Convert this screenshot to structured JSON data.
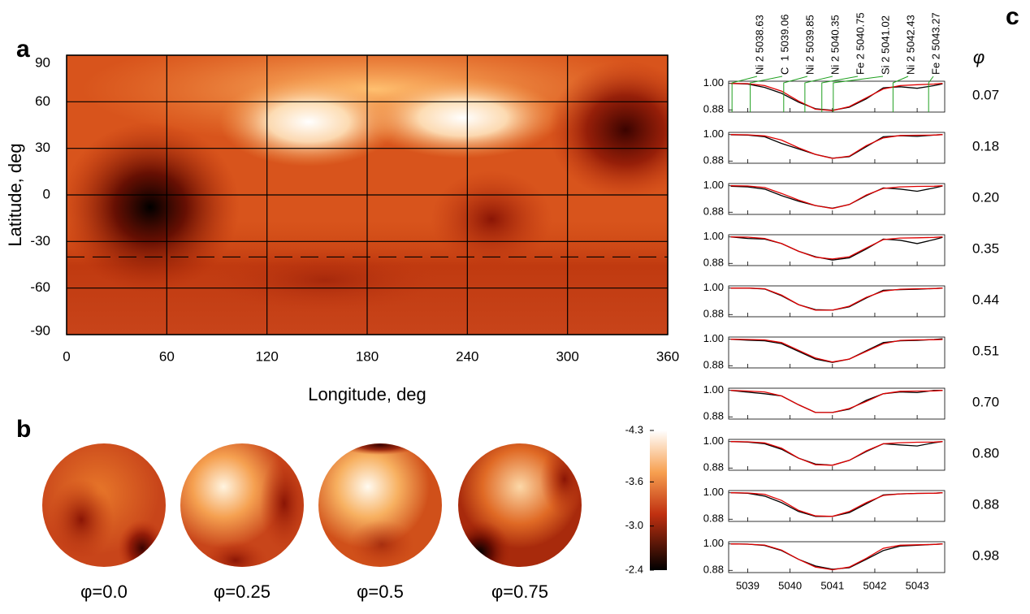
{
  "chart_data": [
    {
      "type": "heatmap",
      "panel_label": "a",
      "xlabel": "Longitude, deg",
      "ylabel": "Latitude, deg",
      "xlim": [
        0,
        360
      ],
      "ylim": [
        -90,
        90
      ],
      "xticks": [
        0,
        60,
        120,
        180,
        240,
        300,
        360
      ],
      "yticks": [
        90,
        60,
        30,
        0,
        -30,
        -60,
        -90
      ],
      "grid": true,
      "grid_color": "#000000",
      "reference_line": -40
    },
    {
      "type": "globes",
      "panel_label": "b",
      "phase_labels": [
        "φ=0.0",
        "φ=0.25",
        "φ=0.5",
        "φ=0.75"
      ],
      "clim": [
        -4.3,
        -2.4
      ],
      "cticks": [
        -4.3,
        -3.6,
        {
          "value": -3,
          "label": "-3.0"
        },
        -2.4
      ]
    },
    {
      "type": "line-profiles",
      "panel_label": "c",
      "phase_symbol": "φ",
      "xlim": [
        5038.55,
        5043.65
      ],
      "ylim": [
        0.87,
        1.01
      ],
      "xticks": [
        5039,
        5040,
        5041,
        5042,
        5043
      ],
      "yticks": [
        {
          "value": 1,
          "label": "1.00"
        },
        {
          "value": 0.88,
          "label": "0.88"
        }
      ],
      "lines": [
        {
          "label": "Ni 2 5038.63",
          "x": 5038.63
        },
        {
          "label": "C  1 5039.06",
          "x": 5039.06
        },
        {
          "label": "Ni 2 5039.85",
          "x": 5039.85
        },
        {
          "label": "Ni 2 5040.35",
          "x": 5040.35
        },
        {
          "label": "Fe 2 5040.75",
          "x": 5040.75
        },
        {
          "label": "Si 2 5041.02",
          "x": 5041.02
        },
        {
          "label": "Ni 2 5042.43",
          "x": 5042.43
        },
        {
          "label": "Fe 2 5043.27",
          "x": 5043.27
        }
      ],
      "x": [
        5038.6,
        5039.0,
        5039.4,
        5039.8,
        5040.2,
        5040.6,
        5041.0,
        5041.4,
        5041.8,
        5042.2,
        5042.6,
        5043.0,
        5043.4,
        5043.6
      ],
      "panels": [
        {
          "phase": "0.07",
          "series": [
            {
              "color": "#000000",
              "values": [
                1.0,
                0.997,
                0.982,
                0.955,
                0.915,
                0.885,
                0.878,
                0.892,
                0.93,
                0.98,
                0.985,
                0.978,
                0.99,
                0.998
              ]
            },
            {
              "color": "#e00000",
              "values": [
                1.0,
                0.999,
                0.99,
                0.965,
                0.92,
                0.883,
                0.877,
                0.895,
                0.935,
                0.975,
                0.99,
                0.994,
                0.997,
                1.0
              ]
            }
          ]
        },
        {
          "phase": "0.18",
          "series": [
            {
              "color": "#000000",
              "values": [
                0.999,
                0.998,
                0.99,
                0.96,
                0.935,
                0.91,
                0.893,
                0.9,
                0.945,
                0.99,
                0.995,
                0.992,
                0.998,
                1.0
              ]
            },
            {
              "color": "#e00000",
              "values": [
                1.0,
                0.999,
                0.994,
                0.975,
                0.94,
                0.91,
                0.892,
                0.902,
                0.95,
                0.985,
                0.996,
                0.997,
                0.998,
                1.0
              ]
            }
          ]
        },
        {
          "phase": "0.20",
          "series": [
            {
              "color": "#000000",
              "values": [
                0.998,
                0.995,
                0.985,
                0.955,
                0.93,
                0.91,
                0.898,
                0.915,
                0.955,
                0.99,
                0.985,
                0.975,
                0.99,
                0.999
              ]
            },
            {
              "color": "#e00000",
              "values": [
                1.0,
                0.999,
                0.992,
                0.965,
                0.935,
                0.91,
                0.897,
                0.915,
                0.958,
                0.988,
                0.995,
                0.997,
                0.998,
                1.0
              ]
            }
          ]
        },
        {
          "phase": "0.35",
          "series": [
            {
              "color": "#000000",
              "values": [
                1.0,
                0.993,
                0.99,
                0.97,
                0.935,
                0.91,
                0.895,
                0.905,
                0.945,
                0.99,
                0.985,
                0.97,
                0.988,
                0.998
              ]
            },
            {
              "color": "#e00000",
              "values": [
                1.0,
                0.999,
                0.993,
                0.97,
                0.935,
                0.908,
                0.9,
                0.91,
                0.95,
                0.988,
                0.995,
                0.996,
                0.998,
                1.0
              ]
            }
          ]
        },
        {
          "phase": "0.44",
          "series": [
            {
              "color": "#000000",
              "values": [
                1.0,
                1.0,
                0.996,
                0.965,
                0.925,
                0.902,
                0.9,
                0.915,
                0.955,
                0.99,
                0.993,
                0.995,
                0.998,
                1.0
              ]
            },
            {
              "color": "#e00000",
              "values": [
                1.0,
                1.0,
                0.997,
                0.968,
                0.925,
                0.9,
                0.9,
                0.918,
                0.958,
                0.986,
                0.995,
                0.997,
                0.998,
                1.0
              ]
            }
          ]
        },
        {
          "phase": "0.51",
          "series": [
            {
              "color": "#000000",
              "values": [
                1.0,
                0.996,
                0.993,
                0.98,
                0.945,
                0.91,
                0.895,
                0.91,
                0.948,
                0.985,
                0.993,
                0.995,
                0.999,
                1.002
              ]
            },
            {
              "color": "#e00000",
              "values": [
                1.0,
                0.999,
                0.997,
                0.985,
                0.95,
                0.915,
                0.897,
                0.91,
                0.945,
                0.98,
                0.995,
                0.997,
                0.998,
                0.999
              ]
            }
          ]
        },
        {
          "phase": "0.70",
          "series": [
            {
              "color": "#000000",
              "values": [
                1.0,
                0.992,
                0.985,
                0.975,
                0.935,
                0.9,
                0.9,
                0.915,
                0.955,
                0.985,
                0.993,
                0.99,
                1.0,
                1.0
              ]
            },
            {
              "color": "#e00000",
              "values": [
                1.0,
                0.997,
                0.993,
                0.975,
                0.935,
                0.9,
                0.9,
                0.918,
                0.95,
                0.985,
                0.996,
                0.997,
                0.998,
                1.0
              ]
            }
          ]
        },
        {
          "phase": "0.80",
          "series": [
            {
              "color": "#000000",
              "values": [
                1.0,
                0.998,
                0.99,
                0.965,
                0.925,
                0.898,
                0.893,
                0.915,
                0.955,
                0.99,
                0.985,
                0.98,
                0.995,
                1.0
              ]
            },
            {
              "color": "#e00000",
              "values": [
                1.0,
                0.999,
                0.994,
                0.97,
                0.925,
                0.895,
                0.893,
                0.915,
                0.958,
                0.99,
                0.995,
                0.997,
                0.998,
                1.0
              ]
            }
          ]
        },
        {
          "phase": "0.88",
          "series": [
            {
              "color": "#000000",
              "values": [
                1.0,
                0.998,
                0.985,
                0.955,
                0.915,
                0.893,
                0.893,
                0.91,
                0.95,
                0.99,
                0.995,
                0.997,
                0.998,
                1.0
              ]
            },
            {
              "color": "#e00000",
              "values": [
                1.0,
                0.999,
                0.993,
                0.965,
                0.92,
                0.895,
                0.893,
                0.915,
                0.955,
                0.988,
                0.995,
                0.997,
                0.998,
                1.0
              ]
            }
          ]
        },
        {
          "phase": "0.98",
          "series": [
            {
              "color": "#000000",
              "values": [
                1.0,
                0.999,
                0.993,
                0.97,
                0.93,
                0.9,
                0.885,
                0.892,
                0.93,
                0.97,
                0.99,
                0.994,
                0.998,
                1.0
              ]
            },
            {
              "color": "#e00000",
              "values": [
                1.0,
                0.999,
                0.995,
                0.972,
                0.93,
                0.895,
                0.883,
                0.895,
                0.935,
                0.98,
                0.994,
                0.996,
                0.998,
                1.0
              ]
            }
          ]
        }
      ]
    }
  ]
}
